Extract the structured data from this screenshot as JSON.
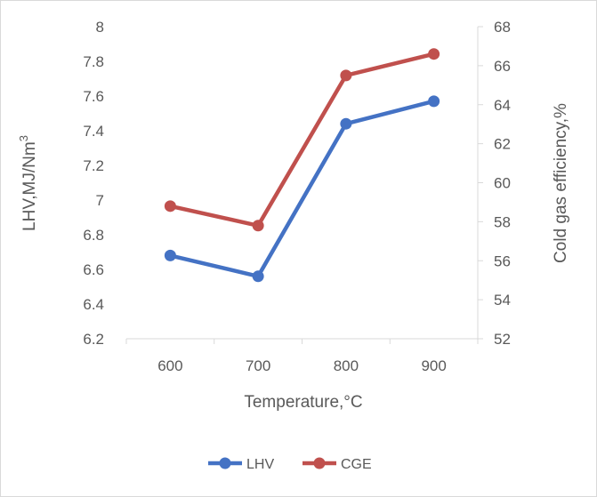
{
  "chart_data": {
    "type": "line",
    "title": "",
    "categories": [
      "600",
      "700",
      "800",
      "900"
    ],
    "xlabel": "Temperature,°C",
    "ylabel_left": "LHV,MJ/Nm",
    "ylabel_left_superscript": "3",
    "ylabel_right": "Cold gas efficiency,%",
    "ylim_left": [
      6.2,
      8
    ],
    "yticks_left": [
      "6.2",
      "6.4",
      "6.6",
      "6.8",
      "7",
      "7.2",
      "7.4",
      "7.6",
      "7.8",
      "8"
    ],
    "ylim_right": [
      52,
      68
    ],
    "yticks_right": [
      "52",
      "54",
      "56",
      "58",
      "60",
      "62",
      "64",
      "66",
      "68"
    ],
    "grid": false,
    "legend_position": "bottom",
    "series": [
      {
        "name": "LHV",
        "axis": "left",
        "color": "#4472c4",
        "values": [
          6.68,
          6.56,
          7.44,
          7.57
        ]
      },
      {
        "name": "CGE",
        "axis": "right",
        "color": "#c0504d",
        "values": [
          58.8,
          57.8,
          65.5,
          66.6
        ]
      }
    ]
  }
}
